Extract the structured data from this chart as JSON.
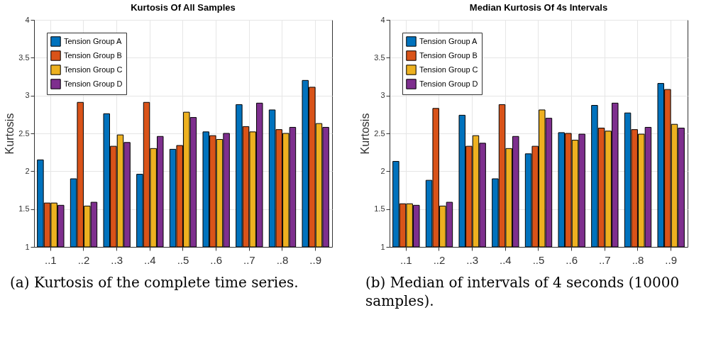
{
  "chart_data": [
    {
      "type": "bar",
      "title": "Kurtosis Of All Samples",
      "ylabel": "Kurtosis",
      "categories": [
        "..1",
        "..2",
        "..3",
        "..4",
        "..5",
        "..6",
        "..7",
        "..8",
        "..9"
      ],
      "ylim": [
        1,
        4
      ],
      "yticks": [
        1,
        1.5,
        2,
        2.5,
        3,
        3.5,
        4
      ],
      "grid": true,
      "legend": "top left",
      "annotations": [
        "(a) Kurtosis of the complete time series."
      ],
      "series": [
        {
          "name": "Tension Group A",
          "color": "#0072bd",
          "values": [
            2.15,
            1.9,
            2.76,
            1.96,
            2.29,
            2.52,
            2.88,
            2.81,
            3.2
          ]
        },
        {
          "name": "Tension Group B",
          "color": "#d95319",
          "values": [
            1.58,
            2.91,
            2.33,
            2.91,
            2.34,
            2.47,
            2.59,
            2.55,
            3.11
          ]
        },
        {
          "name": "Tension Group C",
          "color": "#edb120",
          "values": [
            1.58,
            1.54,
            2.48,
            2.3,
            2.78,
            2.42,
            2.52,
            2.5,
            2.63
          ]
        },
        {
          "name": "Tension Group D",
          "color": "#7e2f8e",
          "values": [
            1.55,
            1.59,
            2.38,
            2.46,
            2.71,
            2.5,
            2.9,
            2.58,
            2.58
          ]
        }
      ]
    },
    {
      "type": "bar",
      "title": "Median Kurtosis Of 4s Intervals",
      "ylabel": "Kurtosis",
      "categories": [
        "..1",
        "..2",
        "..3",
        "..4",
        "..5",
        "..6",
        "..7",
        "..8",
        "..9"
      ],
      "ylim": [
        1,
        4
      ],
      "yticks": [
        1,
        1.5,
        2,
        2.5,
        3,
        3.5,
        4
      ],
      "grid": true,
      "legend": "top left",
      "annotations": [
        "(b) Median of intervals of 4 seconds (10000 samples)."
      ],
      "series": [
        {
          "name": "Tension Group A",
          "color": "#0072bd",
          "values": [
            2.13,
            1.88,
            2.74,
            1.9,
            2.23,
            2.51,
            2.87,
            2.77,
            3.16
          ]
        },
        {
          "name": "Tension Group B",
          "color": "#d95319",
          "values": [
            1.57,
            2.83,
            2.33,
            2.88,
            2.33,
            2.5,
            2.57,
            2.55,
            3.08
          ]
        },
        {
          "name": "Tension Group C",
          "color": "#edb120",
          "values": [
            1.57,
            1.54,
            2.47,
            2.3,
            2.81,
            2.41,
            2.53,
            2.49,
            2.62
          ]
        },
        {
          "name": "Tension Group D",
          "color": "#7e2f8e",
          "values": [
            1.55,
            1.59,
            2.37,
            2.46,
            2.7,
            2.49,
            2.9,
            2.58,
            2.57
          ]
        }
      ]
    }
  ]
}
